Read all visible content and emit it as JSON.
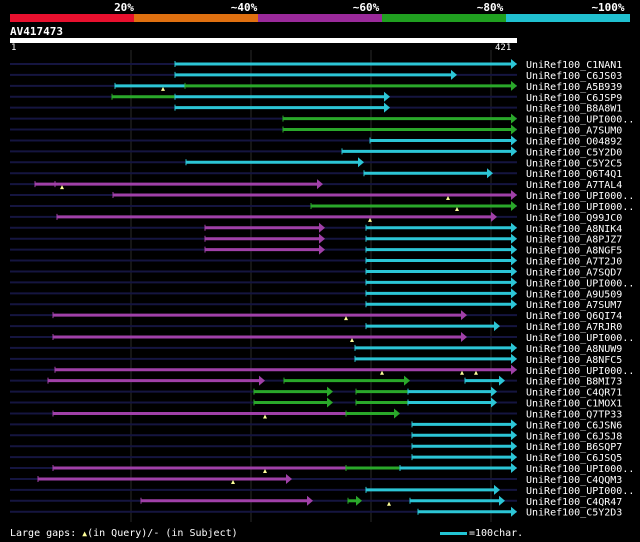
{
  "legend": {
    "colors": [
      "#e8102e",
      "#e07010",
      "#9b2a9b",
      "#20a020",
      "#20c0d0"
    ],
    "labels": [
      "20%",
      "~40%",
      "~60%",
      "~80%",
      "~100%"
    ]
  },
  "query": {
    "name": "AV417473",
    "start": "1",
    "end": "421",
    "length": 421
  },
  "hits": [
    {
      "name": "UniRef100_C1NAN1",
      "segs": [
        [
          175,
          517,
          "c"
        ]
      ],
      "ticks": []
    },
    {
      "name": "UniRef100_C6JS03",
      "segs": [
        [
          175,
          457,
          "c"
        ]
      ],
      "ticks": []
    },
    {
      "name": "UniRef100_A5B939",
      "segs": [
        [
          115,
          185,
          "c"
        ],
        [
          185,
          517,
          "g"
        ]
      ],
      "ticks": [
        163
      ]
    },
    {
      "name": "UniRef100_C6JSP9",
      "segs": [
        [
          112,
          175,
          "g"
        ],
        [
          175,
          390,
          "c"
        ]
      ],
      "ticks": []
    },
    {
      "name": "UniRef100_B8A8W1",
      "segs": [
        [
          175,
          390,
          "c"
        ]
      ],
      "ticks": []
    },
    {
      "name": "UniRef100_UPI000..",
      "segs": [
        [
          283,
          517,
          "g"
        ]
      ],
      "ticks": []
    },
    {
      "name": "UniRef100_A7SUM0",
      "segs": [
        [
          283,
          517,
          "g"
        ]
      ],
      "ticks": []
    },
    {
      "name": "UniRef100_O04892",
      "segs": [
        [
          370,
          517,
          "c"
        ]
      ],
      "ticks": []
    },
    {
      "name": "UniRef100_C5Y2D0",
      "segs": [
        [
          342,
          517,
          "c"
        ]
      ],
      "ticks": []
    },
    {
      "name": "UniRef100_C5Y2C5",
      "segs": [
        [
          186,
          364,
          "c"
        ]
      ],
      "ticks": []
    },
    {
      "name": "UniRef100_Q6T4Q1",
      "segs": [
        [
          364,
          493,
          "c"
        ]
      ],
      "ticks": []
    },
    {
      "name": "UniRef100_A7TAL4",
      "segs": [
        [
          35,
          55,
          "m"
        ],
        [
          55,
          323,
          "m"
        ]
      ],
      "ticks": [
        62
      ]
    },
    {
      "name": "UniRef100_UPI000..",
      "segs": [
        [
          113,
          517,
          "m"
        ]
      ],
      "ticks": [
        448
      ]
    },
    {
      "name": "UniRef100_UPI000..",
      "segs": [
        [
          311,
          517,
          "g"
        ]
      ],
      "ticks": [
        457
      ]
    },
    {
      "name": "UniRef100_Q99JC0",
      "segs": [
        [
          57,
          497,
          "m"
        ]
      ],
      "ticks": [
        370
      ]
    },
    {
      "name": "UniRef100_A8NIK4",
      "segs": [
        [
          205,
          325,
          "m"
        ],
        [
          366,
          517,
          "c"
        ]
      ],
      "ticks": []
    },
    {
      "name": "UniRef100_A8PJZ7",
      "segs": [
        [
          205,
          325,
          "m"
        ],
        [
          366,
          517,
          "c"
        ]
      ],
      "ticks": []
    },
    {
      "name": "UniRef100_A8NGF5",
      "segs": [
        [
          205,
          325,
          "m"
        ],
        [
          366,
          517,
          "c"
        ]
      ],
      "ticks": []
    },
    {
      "name": "UniRef100_A7T2J0",
      "segs": [
        [
          366,
          517,
          "c"
        ]
      ],
      "ticks": []
    },
    {
      "name": "UniRef100_A7SQD7",
      "segs": [
        [
          366,
          517,
          "c"
        ]
      ],
      "ticks": []
    },
    {
      "name": "UniRef100_UPI000..",
      "segs": [
        [
          366,
          517,
          "c"
        ]
      ],
      "ticks": []
    },
    {
      "name": "UniRef100_A9U509",
      "segs": [
        [
          366,
          517,
          "c"
        ]
      ],
      "ticks": []
    },
    {
      "name": "UniRef100_A7SUM7",
      "segs": [
        [
          366,
          517,
          "c"
        ]
      ],
      "ticks": []
    },
    {
      "name": "UniRef100_Q6QI74",
      "segs": [
        [
          53,
          467,
          "m"
        ]
      ],
      "ticks": [
        346
      ]
    },
    {
      "name": "UniRef100_A7RJR0",
      "segs": [
        [
          366,
          500,
          "c"
        ]
      ],
      "ticks": []
    },
    {
      "name": "UniRef100_UPI000..",
      "segs": [
        [
          53,
          467,
          "m"
        ]
      ],
      "ticks": [
        352
      ]
    },
    {
      "name": "UniRef100_A8NUW9",
      "segs": [
        [
          355,
          517,
          "c"
        ]
      ],
      "ticks": []
    },
    {
      "name": "UniRef100_A8NFC5",
      "segs": [
        [
          355,
          517,
          "c"
        ]
      ],
      "ticks": []
    },
    {
      "name": "UniRef100_UPI000..",
      "segs": [
        [
          55,
          517,
          "m"
        ]
      ],
      "ticks": [
        382,
        462,
        476
      ]
    },
    {
      "name": "UniRef100_B8MI73",
      "segs": [
        [
          48,
          265,
          "m"
        ],
        [
          284,
          410,
          "g"
        ],
        [
          465,
          505,
          "c"
        ]
      ],
      "ticks": []
    },
    {
      "name": "UniRef100_C4QR71",
      "segs": [
        [
          254,
          333,
          "g"
        ],
        [
          356,
          408,
          "g"
        ],
        [
          408,
          497,
          "c"
        ]
      ],
      "ticks": []
    },
    {
      "name": "UniRef100_C1MOX1",
      "segs": [
        [
          254,
          333,
          "g"
        ],
        [
          356,
          408,
          "g"
        ],
        [
          408,
          497,
          "c"
        ]
      ],
      "ticks": []
    },
    {
      "name": "UniRef100_Q7TP33",
      "segs": [
        [
          53,
          346,
          "m"
        ],
        [
          346,
          400,
          "g"
        ]
      ],
      "ticks": [
        265
      ]
    },
    {
      "name": "UniRef100_C6JSN6",
      "segs": [
        [
          412,
          517,
          "c"
        ]
      ],
      "ticks": []
    },
    {
      "name": "UniRef100_C6JSJ8",
      "segs": [
        [
          412,
          517,
          "c"
        ]
      ],
      "ticks": []
    },
    {
      "name": "UniRef100_B6SQP7",
      "segs": [
        [
          412,
          517,
          "c"
        ]
      ],
      "ticks": []
    },
    {
      "name": "UniRef100_C6JSQ5",
      "segs": [
        [
          412,
          517,
          "c"
        ]
      ],
      "ticks": []
    },
    {
      "name": "UniRef100_UPI000..",
      "segs": [
        [
          53,
          346,
          "m"
        ],
        [
          346,
          400,
          "g"
        ],
        [
          400,
          517,
          "c"
        ]
      ],
      "ticks": [
        265
      ]
    },
    {
      "name": "UniRef100_C4QQM3",
      "segs": [
        [
          38,
          292,
          "m"
        ]
      ],
      "ticks": [
        233
      ]
    },
    {
      "name": "UniRef100_UPI000..",
      "segs": [
        [
          366,
          500,
          "c"
        ]
      ],
      "ticks": []
    },
    {
      "name": "UniRef100_C4QR47",
      "segs": [
        [
          141,
          313,
          "m"
        ],
        [
          348,
          362,
          "g"
        ],
        [
          410,
          505,
          "c"
        ]
      ],
      "ticks": [
        389
      ]
    },
    {
      "name": "UniRef100_C5Y2D3",
      "segs": [
        [
          418,
          517,
          "c"
        ]
      ],
      "ticks": []
    }
  ],
  "footer": {
    "gaps_label": "Large gaps:",
    "in_query": "(in Query)/",
    "dash": "-",
    "in_subject": " (in Subject)",
    "tri": "▲",
    "scale_label": "=100char."
  }
}
